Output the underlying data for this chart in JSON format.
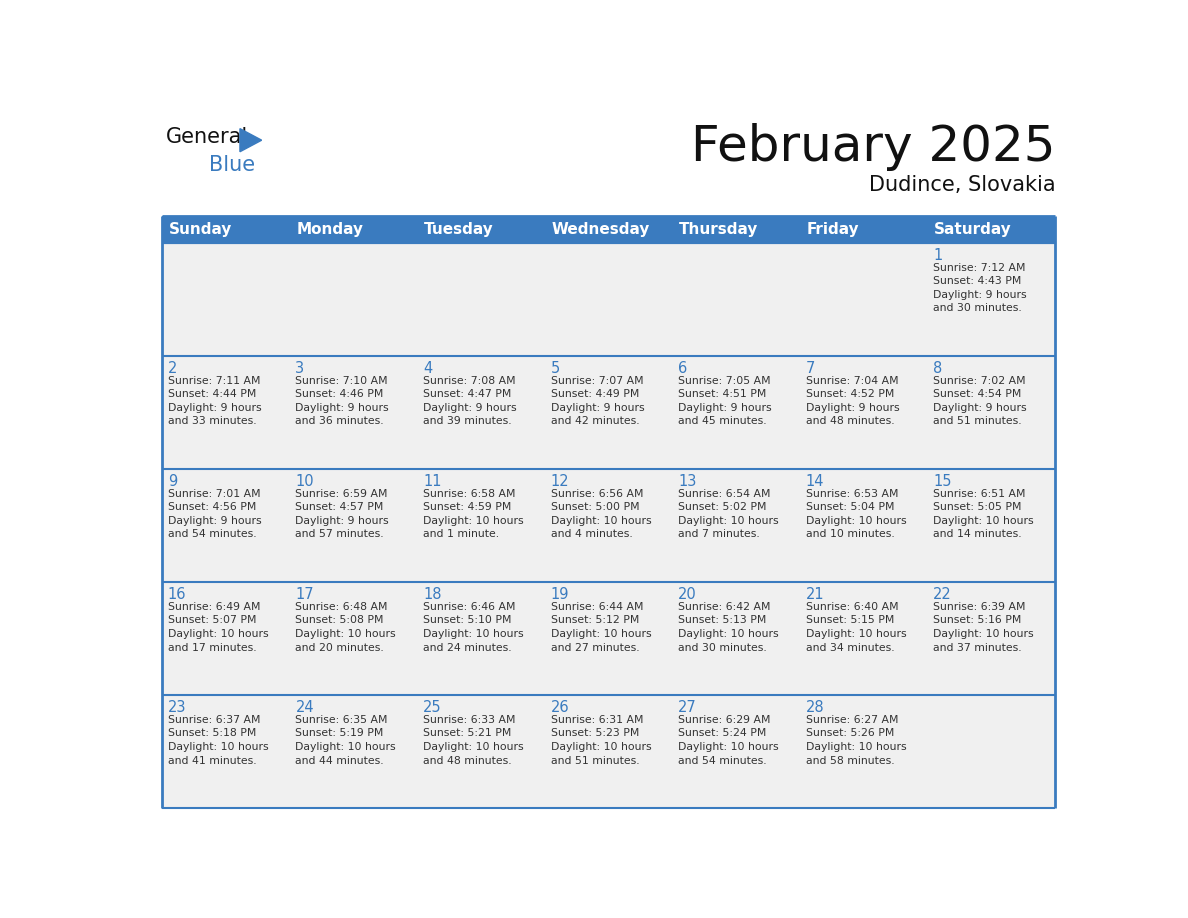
{
  "title": "February 2025",
  "subtitle": "Dudince, Slovakia",
  "header_bg": "#3a7bbf",
  "header_text": "#ffffff",
  "day_names": [
    "Sunday",
    "Monday",
    "Tuesday",
    "Wednesday",
    "Thursday",
    "Friday",
    "Saturday"
  ],
  "row_bg": "#f0f0f0",
  "border_color": "#3a7bbf",
  "date_color": "#3a7bbf",
  "text_color": "#333333",
  "calendar": [
    [
      {
        "day": null,
        "text": ""
      },
      {
        "day": null,
        "text": ""
      },
      {
        "day": null,
        "text": ""
      },
      {
        "day": null,
        "text": ""
      },
      {
        "day": null,
        "text": ""
      },
      {
        "day": null,
        "text": ""
      },
      {
        "day": 1,
        "text": "Sunrise: 7:12 AM\nSunset: 4:43 PM\nDaylight: 9 hours\nand 30 minutes."
      }
    ],
    [
      {
        "day": 2,
        "text": "Sunrise: 7:11 AM\nSunset: 4:44 PM\nDaylight: 9 hours\nand 33 minutes."
      },
      {
        "day": 3,
        "text": "Sunrise: 7:10 AM\nSunset: 4:46 PM\nDaylight: 9 hours\nand 36 minutes."
      },
      {
        "day": 4,
        "text": "Sunrise: 7:08 AM\nSunset: 4:47 PM\nDaylight: 9 hours\nand 39 minutes."
      },
      {
        "day": 5,
        "text": "Sunrise: 7:07 AM\nSunset: 4:49 PM\nDaylight: 9 hours\nand 42 minutes."
      },
      {
        "day": 6,
        "text": "Sunrise: 7:05 AM\nSunset: 4:51 PM\nDaylight: 9 hours\nand 45 minutes."
      },
      {
        "day": 7,
        "text": "Sunrise: 7:04 AM\nSunset: 4:52 PM\nDaylight: 9 hours\nand 48 minutes."
      },
      {
        "day": 8,
        "text": "Sunrise: 7:02 AM\nSunset: 4:54 PM\nDaylight: 9 hours\nand 51 minutes."
      }
    ],
    [
      {
        "day": 9,
        "text": "Sunrise: 7:01 AM\nSunset: 4:56 PM\nDaylight: 9 hours\nand 54 minutes."
      },
      {
        "day": 10,
        "text": "Sunrise: 6:59 AM\nSunset: 4:57 PM\nDaylight: 9 hours\nand 57 minutes."
      },
      {
        "day": 11,
        "text": "Sunrise: 6:58 AM\nSunset: 4:59 PM\nDaylight: 10 hours\nand 1 minute."
      },
      {
        "day": 12,
        "text": "Sunrise: 6:56 AM\nSunset: 5:00 PM\nDaylight: 10 hours\nand 4 minutes."
      },
      {
        "day": 13,
        "text": "Sunrise: 6:54 AM\nSunset: 5:02 PM\nDaylight: 10 hours\nand 7 minutes."
      },
      {
        "day": 14,
        "text": "Sunrise: 6:53 AM\nSunset: 5:04 PM\nDaylight: 10 hours\nand 10 minutes."
      },
      {
        "day": 15,
        "text": "Sunrise: 6:51 AM\nSunset: 5:05 PM\nDaylight: 10 hours\nand 14 minutes."
      }
    ],
    [
      {
        "day": 16,
        "text": "Sunrise: 6:49 AM\nSunset: 5:07 PM\nDaylight: 10 hours\nand 17 minutes."
      },
      {
        "day": 17,
        "text": "Sunrise: 6:48 AM\nSunset: 5:08 PM\nDaylight: 10 hours\nand 20 minutes."
      },
      {
        "day": 18,
        "text": "Sunrise: 6:46 AM\nSunset: 5:10 PM\nDaylight: 10 hours\nand 24 minutes."
      },
      {
        "day": 19,
        "text": "Sunrise: 6:44 AM\nSunset: 5:12 PM\nDaylight: 10 hours\nand 27 minutes."
      },
      {
        "day": 20,
        "text": "Sunrise: 6:42 AM\nSunset: 5:13 PM\nDaylight: 10 hours\nand 30 minutes."
      },
      {
        "day": 21,
        "text": "Sunrise: 6:40 AM\nSunset: 5:15 PM\nDaylight: 10 hours\nand 34 minutes."
      },
      {
        "day": 22,
        "text": "Sunrise: 6:39 AM\nSunset: 5:16 PM\nDaylight: 10 hours\nand 37 minutes."
      }
    ],
    [
      {
        "day": 23,
        "text": "Sunrise: 6:37 AM\nSunset: 5:18 PM\nDaylight: 10 hours\nand 41 minutes."
      },
      {
        "day": 24,
        "text": "Sunrise: 6:35 AM\nSunset: 5:19 PM\nDaylight: 10 hours\nand 44 minutes."
      },
      {
        "day": 25,
        "text": "Sunrise: 6:33 AM\nSunset: 5:21 PM\nDaylight: 10 hours\nand 48 minutes."
      },
      {
        "day": 26,
        "text": "Sunrise: 6:31 AM\nSunset: 5:23 PM\nDaylight: 10 hours\nand 51 minutes."
      },
      {
        "day": 27,
        "text": "Sunrise: 6:29 AM\nSunset: 5:24 PM\nDaylight: 10 hours\nand 54 minutes."
      },
      {
        "day": 28,
        "text": "Sunrise: 6:27 AM\nSunset: 5:26 PM\nDaylight: 10 hours\nand 58 minutes."
      },
      {
        "day": null,
        "text": ""
      }
    ]
  ]
}
